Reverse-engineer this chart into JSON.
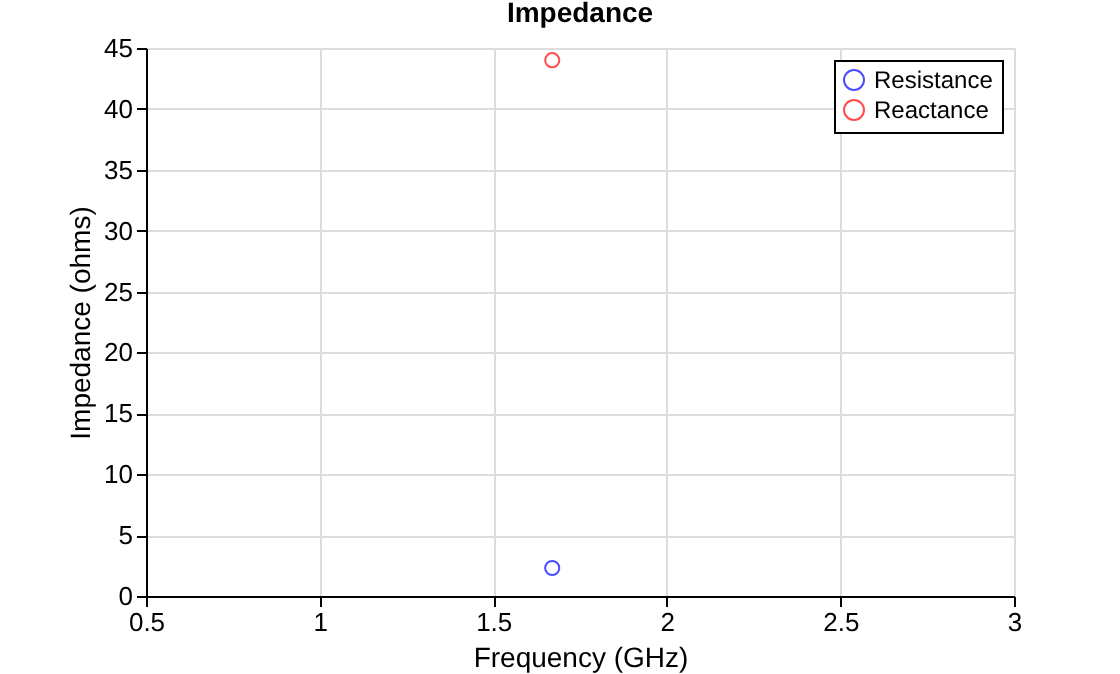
{
  "chart_data": {
    "type": "scatter",
    "title": "Impedance",
    "xlabel": "Frequency (GHz)",
    "ylabel": "Impedance (ohms)",
    "x": [
      1.67
    ],
    "series": [
      {
        "name": "Resistance",
        "color": "#0000ff",
        "values": [
          2.3
        ]
      },
      {
        "name": "Reactance",
        "color": "#ff0000",
        "values": [
          44.0
        ]
      }
    ],
    "xlim": [
      0.5,
      3
    ],
    "xticks": [
      0.5,
      1,
      1.5,
      2,
      2.5,
      3
    ],
    "ylim": [
      0,
      45
    ],
    "yticks": [
      0,
      5,
      10,
      15,
      20,
      25,
      30,
      35,
      40,
      45
    ],
    "grid": true,
    "legend": "top right",
    "marker": "circle"
  }
}
